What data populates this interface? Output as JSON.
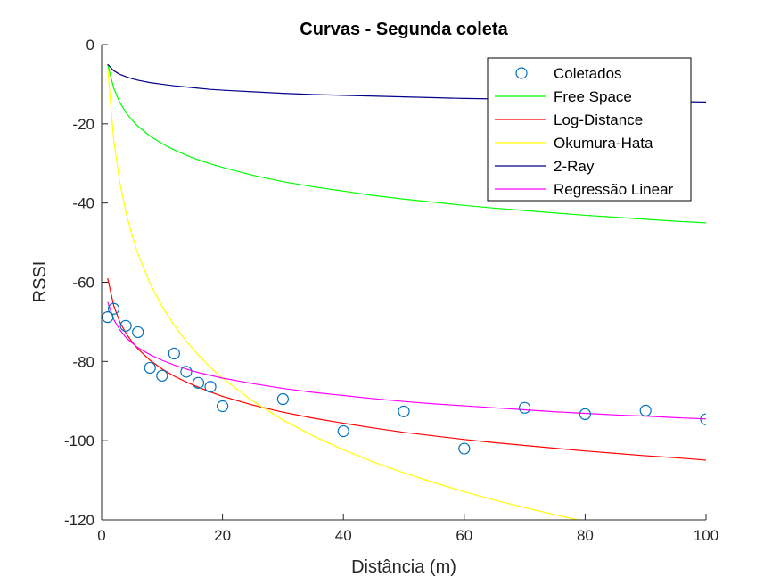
{
  "chart_data": {
    "type": "line",
    "title": "Curvas - Segunda coleta",
    "xlabel": "Distância (m)",
    "ylabel": "RSSI",
    "xlim": [
      0,
      100
    ],
    "ylim": [
      -120,
      0
    ],
    "xticks": [
      0,
      20,
      40,
      60,
      80,
      100
    ],
    "yticks": [
      0,
      -20,
      -40,
      -60,
      -80,
      -100,
      -120
    ],
    "grid": false,
    "legend_position": "top-right",
    "series": [
      {
        "name": "Coletados",
        "style": "markers",
        "color": "#0072BD",
        "x": [
          1,
          2,
          4,
          6,
          8,
          10,
          12,
          14,
          16,
          18,
          20,
          30,
          40,
          50,
          60,
          70,
          80,
          90,
          100
        ],
        "y": [
          -68.8,
          -66.7,
          -71.0,
          -72.6,
          -81.6,
          -83.6,
          -78.0,
          -82.6,
          -85.4,
          -86.4,
          -91.3,
          -89.5,
          -97.6,
          -92.6,
          -102.0,
          -91.7,
          -93.3,
          -92.4,
          -94.6
        ]
      },
      {
        "name": "Free Space",
        "style": "line",
        "color": "#00FF00",
        "x": [
          1,
          2,
          3,
          4,
          5,
          6,
          8,
          10,
          12,
          14,
          16,
          18,
          20,
          25,
          30,
          35,
          40,
          45,
          50,
          55,
          60,
          65,
          70,
          75,
          80,
          85,
          90,
          95,
          100
        ],
        "y": [
          -5.0,
          -11.0,
          -14.6,
          -17.1,
          -19.0,
          -20.6,
          -23.1,
          -25.0,
          -26.6,
          -27.9,
          -29.1,
          -30.1,
          -31.0,
          -33.0,
          -34.6,
          -35.9,
          -37.0,
          -38.1,
          -39.0,
          -39.8,
          -40.6,
          -41.3,
          -41.9,
          -42.5,
          -43.1,
          -43.6,
          -44.1,
          -44.6,
          -45.0
        ]
      },
      {
        "name": "Log-Distance",
        "style": "line",
        "color": "#FF0000",
        "x": [
          1,
          2,
          3,
          4,
          5,
          6,
          8,
          10,
          12,
          14,
          16,
          18,
          20,
          25,
          30,
          35,
          40,
          45,
          50,
          55,
          60,
          65,
          70,
          75,
          80,
          85,
          90,
          95,
          100
        ],
        "y": [
          -59.0,
          -65.9,
          -70.0,
          -72.8,
          -75.0,
          -76.8,
          -79.7,
          -81.9,
          -83.7,
          -85.2,
          -86.5,
          -87.7,
          -88.8,
          -91.0,
          -92.8,
          -94.3,
          -95.6,
          -96.8,
          -97.9,
          -98.8,
          -99.7,
          -100.5,
          -101.2,
          -101.9,
          -102.6,
          -103.2,
          -103.8,
          -104.3,
          -104.9
        ]
      },
      {
        "name": "Okumura-Hata",
        "style": "line",
        "color": "#FFFF00",
        "x": [
          1,
          2,
          3,
          4,
          5,
          6,
          8,
          10,
          12,
          14,
          16,
          18,
          20,
          25,
          30,
          35,
          40,
          45,
          50,
          55,
          60,
          65,
          70,
          75,
          80,
          85,
          90,
          95,
          100
        ],
        "y": [
          -6.0,
          -24.1,
          -34.7,
          -42.2,
          -48.0,
          -52.8,
          -60.3,
          -66.1,
          -70.9,
          -74.9,
          -78.4,
          -81.5,
          -84.2,
          -90.0,
          -94.8,
          -98.8,
          -102.3,
          -105.4,
          -108.1,
          -110.6,
          -112.9,
          -115.0,
          -116.9,
          -118.7,
          -120.4,
          -121.9,
          -123.4,
          -124.8,
          -126.1
        ]
      },
      {
        "name": "2-Ray",
        "style": "line",
        "color": "#00008B",
        "x": [
          1,
          2,
          3,
          4,
          5,
          6,
          8,
          10,
          12,
          14,
          16,
          18,
          20,
          25,
          30,
          35,
          40,
          45,
          50,
          55,
          60,
          65,
          70,
          75,
          80,
          85,
          90,
          95,
          100
        ],
        "y": [
          -5.0,
          -6.6,
          -7.5,
          -8.1,
          -8.6,
          -9.0,
          -9.6,
          -10.0,
          -10.4,
          -10.7,
          -11.0,
          -11.3,
          -11.5,
          -11.9,
          -12.3,
          -12.6,
          -12.8,
          -13.0,
          -13.2,
          -13.4,
          -13.6,
          -13.7,
          -13.8,
          -14.0,
          -14.1,
          -14.2,
          -14.3,
          -14.4,
          -14.5
        ]
      },
      {
        "name": "Regressão Linear",
        "style": "line",
        "color": "#FF00FF",
        "x": [
          1,
          2,
          3,
          4,
          5,
          6,
          8,
          10,
          12,
          14,
          16,
          18,
          20,
          25,
          30,
          35,
          40,
          45,
          50,
          55,
          60,
          65,
          70,
          75,
          80,
          85,
          90,
          95,
          100
        ],
        "y": [
          -65.0,
          -69.4,
          -72.0,
          -73.9,
          -75.3,
          -76.5,
          -78.3,
          -79.7,
          -80.9,
          -81.9,
          -82.8,
          -83.5,
          -84.2,
          -85.6,
          -86.8,
          -87.8,
          -88.6,
          -89.4,
          -90.1,
          -90.7,
          -91.2,
          -91.7,
          -92.2,
          -92.7,
          -93.1,
          -93.5,
          -93.8,
          -94.2,
          -94.5
        ]
      }
    ]
  }
}
